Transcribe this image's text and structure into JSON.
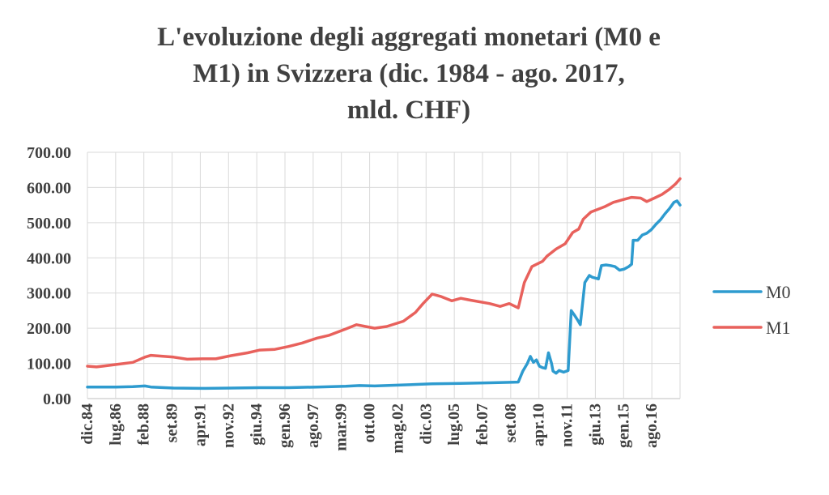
{
  "title_lines": [
    "L'evoluzione degli aggregati monetari (M0 e",
    "M1) in Svizzera (dic. 1984 - ago. 2017,",
    "mld. CHF)"
  ],
  "chart_data": {
    "type": "line",
    "x_start": "1984-12",
    "x_end": "2017-08",
    "x_ticks": [
      "dic.84",
      "lug.86",
      "feb.88",
      "set.89",
      "apr.91",
      "nov.92",
      "giu.94",
      "gen.96",
      "ago.97",
      "mar.99",
      "ott.00",
      "mag.02",
      "dic.03",
      "lug.05",
      "feb.07",
      "set.08",
      "apr.10",
      "nov.11",
      "giu.13",
      "gen.15",
      "ago.16"
    ],
    "y_ticks": [
      "0.00",
      "100.00",
      "200.00",
      "300.00",
      "400.00",
      "500.00",
      "600.00",
      "700.00"
    ],
    "ylim": [
      0,
      700
    ],
    "grid": true,
    "legend_position": "right",
    "series": [
      {
        "name": "M0",
        "color": "#2E9BCF",
        "points": [
          [
            "1984-12",
            33
          ],
          [
            "1986-07",
            33
          ],
          [
            "1987-06",
            34
          ],
          [
            "1988-02",
            36
          ],
          [
            "1988-06",
            33
          ],
          [
            "1989-09",
            30
          ],
          [
            "1991-04",
            29
          ],
          [
            "1992-11",
            30
          ],
          [
            "1994-06",
            31
          ],
          [
            "1996-01",
            31
          ],
          [
            "1997-08",
            33
          ],
          [
            "1999-03",
            35
          ],
          [
            "1999-12",
            37
          ],
          [
            "2000-10",
            36
          ],
          [
            "2002-05",
            39
          ],
          [
            "2003-12",
            42
          ],
          [
            "2005-07",
            43
          ],
          [
            "2007-02",
            45
          ],
          [
            "2008-09",
            47
          ],
          [
            "2008-12",
            78
          ],
          [
            "2009-03",
            100
          ],
          [
            "2009-05",
            120
          ],
          [
            "2009-07",
            103
          ],
          [
            "2009-09",
            110
          ],
          [
            "2009-11",
            92
          ],
          [
            "2010-01",
            88
          ],
          [
            "2010-03",
            86
          ],
          [
            "2010-05",
            130
          ],
          [
            "2010-07",
            100
          ],
          [
            "2010-08",
            78
          ],
          [
            "2010-10",
            72
          ],
          [
            "2010-12",
            80
          ],
          [
            "2011-03",
            75
          ],
          [
            "2011-06",
            80
          ],
          [
            "2011-08",
            250
          ],
          [
            "2011-10",
            238
          ],
          [
            "2011-12",
            225
          ],
          [
            "2012-02",
            210
          ],
          [
            "2012-05",
            330
          ],
          [
            "2012-08",
            350
          ],
          [
            "2012-10",
            345
          ],
          [
            "2013-02",
            340
          ],
          [
            "2013-04",
            378
          ],
          [
            "2013-07",
            380
          ],
          [
            "2013-10",
            378
          ],
          [
            "2014-01",
            375
          ],
          [
            "2014-04",
            365
          ],
          [
            "2014-07",
            368
          ],
          [
            "2014-10",
            375
          ],
          [
            "2014-12",
            382
          ],
          [
            "2015-01",
            450
          ],
          [
            "2015-04",
            450
          ],
          [
            "2015-07",
            465
          ],
          [
            "2015-10",
            470
          ],
          [
            "2016-01",
            480
          ],
          [
            "2016-04",
            495
          ],
          [
            "2016-07",
            508
          ],
          [
            "2016-10",
            525
          ],
          [
            "2017-01",
            540
          ],
          [
            "2017-04",
            558
          ],
          [
            "2017-06",
            562
          ],
          [
            "2017-08",
            550
          ]
        ]
      },
      {
        "name": "M1",
        "color": "#E8615C",
        "points": [
          [
            "1984-12",
            92
          ],
          [
            "1985-06",
            90
          ],
          [
            "1986-07",
            97
          ],
          [
            "1987-06",
            103
          ],
          [
            "1988-02",
            118
          ],
          [
            "1988-06",
            123
          ],
          [
            "1989-09",
            118
          ],
          [
            "1990-06",
            112
          ],
          [
            "1991-04",
            113
          ],
          [
            "1992-01",
            113
          ],
          [
            "1992-11",
            122
          ],
          [
            "1993-10",
            130
          ],
          [
            "1994-06",
            138
          ],
          [
            "1995-04",
            140
          ],
          [
            "1996-01",
            148
          ],
          [
            "1996-10",
            158
          ],
          [
            "1997-08",
            172
          ],
          [
            "1998-04",
            180
          ],
          [
            "1999-03",
            198
          ],
          [
            "1999-10",
            210
          ],
          [
            "2000-04",
            205
          ],
          [
            "2000-10",
            200
          ],
          [
            "2001-06",
            205
          ],
          [
            "2002-05",
            220
          ],
          [
            "2003-01",
            245
          ],
          [
            "2003-06",
            270
          ],
          [
            "2003-12",
            297
          ],
          [
            "2004-06",
            290
          ],
          [
            "2005-01",
            278
          ],
          [
            "2005-07",
            285
          ],
          [
            "2006-01",
            280
          ],
          [
            "2007-02",
            270
          ],
          [
            "2007-09",
            262
          ],
          [
            "2008-03",
            270
          ],
          [
            "2008-09",
            258
          ],
          [
            "2009-01",
            330
          ],
          [
            "2009-06",
            375
          ],
          [
            "2010-01",
            390
          ],
          [
            "2010-04",
            405
          ],
          [
            "2010-10",
            425
          ],
          [
            "2011-04",
            440
          ],
          [
            "2011-09",
            472
          ],
          [
            "2012-01",
            482
          ],
          [
            "2012-04",
            510
          ],
          [
            "2012-09",
            530
          ],
          [
            "2013-06",
            545
          ],
          [
            "2013-12",
            558
          ],
          [
            "2014-06",
            565
          ],
          [
            "2014-12",
            572
          ],
          [
            "2015-06",
            570
          ],
          [
            "2015-10",
            560
          ],
          [
            "2016-03",
            570
          ],
          [
            "2016-08",
            580
          ],
          [
            "2017-01",
            595
          ],
          [
            "2017-05",
            610
          ],
          [
            "2017-08",
            625
          ]
        ]
      }
    ]
  }
}
